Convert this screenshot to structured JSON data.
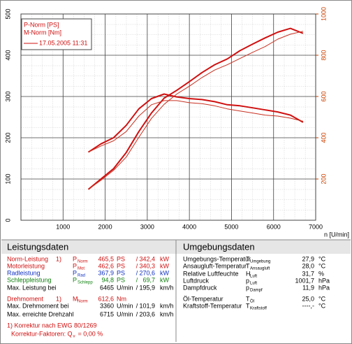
{
  "chart_data": {
    "type": "line",
    "legend_texts": [
      "P-Norm [PS]",
      "M-Norm [Nm]"
    ],
    "legend_line_label": "17.05.2005 11:31",
    "legend_color": "#d01010",
    "x_label": "n [U/min]",
    "x": [
      1600,
      1900,
      2200,
      2500,
      2800,
      3100,
      3400,
      3700,
      4000,
      4300,
      4600,
      4900,
      5200,
      5500,
      5800,
      6100,
      6400,
      6700
    ],
    "series": [
      {
        "color": "#d01010",
        "line_width": 2,
        "axis": "y",
        "values": [
          75,
          100,
          125,
          164,
          215,
          260,
          296,
          315,
          336,
          358,
          377,
          391,
          411,
          427,
          442,
          456,
          465,
          453
        ]
      },
      {
        "color": "#d01010",
        "line_width": 2,
        "axis": "y2",
        "values": [
          330,
          370,
          400,
          460,
          540,
          590,
          612,
          598,
          590,
          585,
          575,
          560,
          555,
          545,
          535,
          525,
          510,
          475
        ]
      },
      {
        "color": "#c83020",
        "line_width": 1,
        "axis": "y",
        "values": [
          75,
          97,
          121,
          153,
          201,
          247,
          281,
          306,
          325,
          346,
          364,
          377,
          392,
          407,
          421,
          439,
          451,
          458
        ]
      },
      {
        "color": "#c83020",
        "line_width": 1,
        "axis": "y2",
        "values": [
          330,
          360,
          385,
          430,
          505,
          560,
          580,
          580,
          570,
          565,
          555,
          540,
          530,
          520,
          510,
          505,
          495,
          480
        ]
      }
    ],
    "xlim": [
      0,
      7000
    ],
    "xticks": [
      1000,
      2000,
      3000,
      4000,
      5000,
      6000,
      7000
    ],
    "ylim": [
      0,
      500
    ],
    "yticks": [
      0,
      100,
      200,
      300,
      400,
      500
    ],
    "y2lim": [
      0,
      1000
    ],
    "y2ticks": [
      200,
      400,
      600,
      800,
      1000
    ],
    "y2_color": "#c84000",
    "grid": true
  },
  "left_table": {
    "title": "Leistungsdaten",
    "rows": [
      {
        "label": "Norm-Leistung",
        "note": "1)",
        "symbol": "P",
        "sub": "Norm",
        "value1": "465,5",
        "unit1": "PS",
        "sep": "/",
        "value2": "342,4",
        "unit2": "kW",
        "color": "#d01010"
      },
      {
        "label": "Motorleistung",
        "symbol": "P",
        "sub": "Mot",
        "value1": "462,6",
        "unit1": "PS",
        "sep": "/",
        "value2": "340,3",
        "unit2": "kW",
        "color": "#d01010"
      },
      {
        "label": "Radleistung",
        "symbol": "P",
        "sub": "Rad",
        "value1": "367,9",
        "unit1": "PS",
        "sep": "/",
        "value2": "270,6",
        "unit2": "kW",
        "color": "#1030c0"
      },
      {
        "label": "Schleppleistung",
        "symbol": "P",
        "sub": "Schlepp",
        "value1": "94,8",
        "unit1": "PS",
        "sep": "/",
        "value2": "69,7",
        "unit2": "kW",
        "color": "#108010"
      },
      {
        "label": "Max. Leistung bei",
        "value1": "6465",
        "unit1": "U/min",
        "sep": "/",
        "value2": "195,9",
        "unit2": "km/h",
        "color": "#000000"
      },
      {
        "label": "Drehmoment",
        "note": "1)",
        "symbol": "M",
        "sub": "Norm",
        "value1": "612,6",
        "unit1": "Nm",
        "color": "#d01010"
      },
      {
        "label": "Max. Drehmoment bei",
        "value1": "3360",
        "unit1": "U/min",
        "sep": "/",
        "value2": "101,9",
        "unit2": "km/h",
        "color": "#000000"
      },
      {
        "label": "Max. erreichte Drehzahl",
        "value1": "6715",
        "unit1": "U/min",
        "sep": "/",
        "value2": "203,6",
        "unit2": "km/h",
        "color": "#000000"
      }
    ],
    "footer": {
      "note": "1) Korrektur nach EWG 80/1269",
      "factor_label": "Korrektur-Faktoren: Q",
      "factor_sub": "v",
      "factor_value": "=   0,00 %",
      "color": "#d01010"
    }
  },
  "right_table": {
    "title": "Umgebungsdaten",
    "rows": [
      {
        "label": "Umgebungs-Temperatur",
        "symbol": "T",
        "sub": "Umgebung",
        "value": "27,9",
        "unit": "°C"
      },
      {
        "label": "Ansaugluft-Temperatur",
        "symbol": "T",
        "sub": "Ansaugluft",
        "value": "28,0",
        "unit": "°C"
      },
      {
        "label": "Relative Luftfeuchte",
        "symbol": "H",
        "sub": "Luft",
        "value": "31,7",
        "unit": "%"
      },
      {
        "label": "Luftdruck",
        "symbol": "p",
        "sub": "Luft",
        "value": "1001,7",
        "unit": "hPa"
      },
      {
        "label": "Dampfdruck",
        "symbol": "p",
        "sub": "Dampf",
        "value": "11,9",
        "unit": "hPa"
      },
      {
        "label": "Öl-Temperatur",
        "symbol": "T",
        "sub": "Öl",
        "value": "25,0",
        "unit": "°C"
      },
      {
        "label": "Kraftstoff-Temperatur",
        "symbol": "T",
        "sub": "Kraftstoff",
        "value": "----,-",
        "unit": "°C"
      }
    ]
  }
}
